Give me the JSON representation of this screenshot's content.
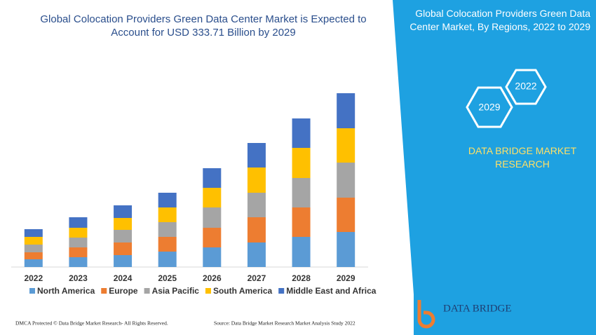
{
  "chart_data": {
    "type": "stacked-bar",
    "title": "Global Colocation Providers Green Data Center Market is Expected to Account for USD 333.71 Billion by 2029",
    "categories": [
      "2022",
      "2023",
      "2024",
      "2025",
      "2026",
      "2027",
      "2028",
      "2029"
    ],
    "series": [
      {
        "name": "North America",
        "color": "#5b9bd5",
        "values": [
          11,
          14,
          17,
          22,
          28,
          35,
          43,
          50
        ]
      },
      {
        "name": "Europe",
        "color": "#ed7d31",
        "values": [
          10,
          14,
          18,
          21,
          28,
          36,
          42,
          49
        ]
      },
      {
        "name": "Asia Pacific",
        "color": "#a5a5a5",
        "values": [
          11,
          14,
          18,
          21,
          29,
          35,
          42,
          50
        ]
      },
      {
        "name": "South America",
        "color": "#ffc000",
        "values": [
          11,
          14,
          17,
          21,
          28,
          36,
          43,
          49
        ]
      },
      {
        "name": "Middle East and Africa",
        "color": "#4472c4",
        "values": [
          11,
          15,
          18,
          21,
          28,
          35,
          42,
          50
        ]
      }
    ]
  },
  "panel": {
    "title": "Global Colocation Providers Green Data Center Market, By Regions, 2022 to 2029",
    "hex_left": "2029",
    "hex_right": "2022",
    "brand": "DATA BRIDGE MARKET RESEARCH",
    "logo": "DATA BRIDGE"
  },
  "footer": {
    "left": "DMCA Protected © Data Bridge Market Research- All Rights Reserved.",
    "right": "Source: Data Bridge Market Research Market Analysis Study 2022"
  }
}
